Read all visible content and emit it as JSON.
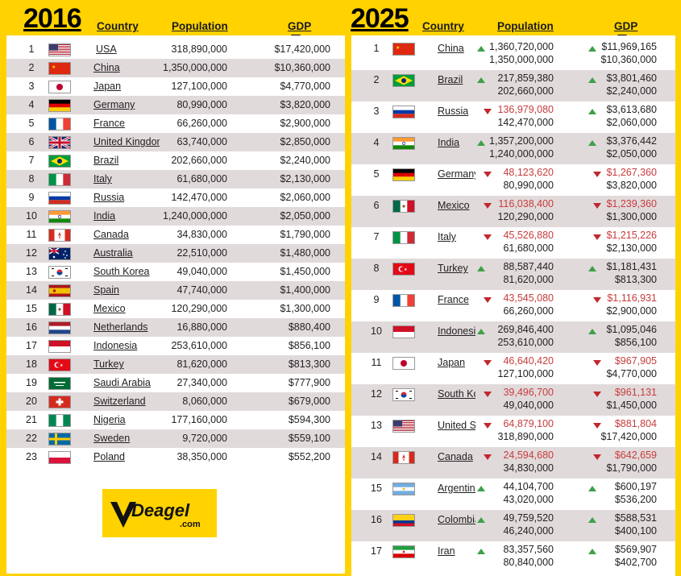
{
  "left": {
    "year": "2016",
    "col_country": "Country",
    "col_population": "Population",
    "col_gdp": "GDP",
    "rows": [
      {
        "rank": "1",
        "country": "USA",
        "population": "318,890,000",
        "gdp": "$17,420,000",
        "flag": "us"
      },
      {
        "rank": "2",
        "country": "China",
        "population": "1,350,000,000",
        "gdp": "$10,360,000",
        "flag": "cn"
      },
      {
        "rank": "3",
        "country": "Japan",
        "population": "127,100,000",
        "gdp": "$4,770,000",
        "flag": "jp"
      },
      {
        "rank": "4",
        "country": "Germany",
        "population": "80,990,000",
        "gdp": "$3,820,000",
        "flag": "de"
      },
      {
        "rank": "5",
        "country": "France",
        "population": "66,260,000",
        "gdp": "$2,900,000",
        "flag": "fr"
      },
      {
        "rank": "6",
        "country": "United Kingdom",
        "population": "63,740,000",
        "gdp": "$2,850,000",
        "flag": "gb"
      },
      {
        "rank": "7",
        "country": "Brazil",
        "population": "202,660,000",
        "gdp": "$2,240,000",
        "flag": "br"
      },
      {
        "rank": "8",
        "country": "Italy",
        "population": "61,680,000",
        "gdp": "$2,130,000",
        "flag": "it"
      },
      {
        "rank": "9",
        "country": "Russia",
        "population": "142,470,000",
        "gdp": "$2,060,000",
        "flag": "ru"
      },
      {
        "rank": "10",
        "country": "India",
        "population": "1,240,000,000",
        "gdp": "$2,050,000",
        "flag": "in"
      },
      {
        "rank": "11",
        "country": "Canada",
        "population": "34,830,000",
        "gdp": "$1,790,000",
        "flag": "ca"
      },
      {
        "rank": "12",
        "country": "Australia",
        "population": "22,510,000",
        "gdp": "$1,480,000",
        "flag": "au"
      },
      {
        "rank": "13",
        "country": "South Korea",
        "population": "49,040,000",
        "gdp": "$1,450,000",
        "flag": "kr"
      },
      {
        "rank": "14",
        "country": "Spain",
        "population": "47,740,000",
        "gdp": "$1,400,000",
        "flag": "es"
      },
      {
        "rank": "15",
        "country": "Mexico",
        "population": "120,290,000",
        "gdp": "$1,300,000",
        "flag": "mx"
      },
      {
        "rank": "16",
        "country": "Netherlands",
        "population": "16,880,000",
        "gdp": "$880,400",
        "flag": "nl"
      },
      {
        "rank": "17",
        "country": "Indonesia",
        "population": "253,610,000",
        "gdp": "$856,100",
        "flag": "id"
      },
      {
        "rank": "18",
        "country": "Turkey",
        "population": "81,620,000",
        "gdp": "$813,300",
        "flag": "tr"
      },
      {
        "rank": "19",
        "country": "Saudi Arabia",
        "population": "27,340,000",
        "gdp": "$777,900",
        "flag": "sa"
      },
      {
        "rank": "20",
        "country": "Switzerland",
        "population": "8,060,000",
        "gdp": "$679,000",
        "flag": "ch"
      },
      {
        "rank": "21",
        "country": "Nigeria",
        "population": "177,160,000",
        "gdp": "$594,300",
        "flag": "ng"
      },
      {
        "rank": "22",
        "country": "Sweden",
        "population": "9,720,000",
        "gdp": "$559,100",
        "flag": "se"
      },
      {
        "rank": "23",
        "country": "Poland",
        "population": "38,350,000",
        "gdp": "$552,200",
        "flag": "pl"
      }
    ]
  },
  "right": {
    "year": "2025",
    "col_country": "Country",
    "col_population": "Population",
    "col_gdp": "GDP",
    "rows": [
      {
        "rank": "1",
        "country": "China",
        "flag": "cn",
        "pop_new": "1,360,720,000",
        "pop_old": "1,350,000,000",
        "pop_dir": "up",
        "gdp_new": "$11,969,165",
        "gdp_old": "$10,360,000",
        "gdp_dir": "up"
      },
      {
        "rank": "2",
        "country": "Brazil",
        "flag": "br",
        "pop_new": "217,859,380",
        "pop_old": "202,660,000",
        "pop_dir": "up",
        "gdp_new": "$3,801,460",
        "gdp_old": "$2,240,000",
        "gdp_dir": "up"
      },
      {
        "rank": "3",
        "country": "Russia",
        "flag": "ru",
        "pop_new": "136,979,080",
        "pop_old": "142,470,000",
        "pop_dir": "down",
        "gdp_new": "$3,613,680",
        "gdp_old": "$2,060,000",
        "gdp_dir": "up"
      },
      {
        "rank": "4",
        "country": "India",
        "flag": "in",
        "pop_new": "1,357,200,000",
        "pop_old": "1,240,000,000",
        "pop_dir": "up",
        "gdp_new": "$3,376,442",
        "gdp_old": "$2,050,000",
        "gdp_dir": "up"
      },
      {
        "rank": "5",
        "country": "Germany",
        "flag": "de",
        "pop_new": "48,123,620",
        "pop_old": "80,990,000",
        "pop_dir": "down",
        "gdp_new": "$1,267,360",
        "gdp_old": "$3,820,000",
        "gdp_dir": "down"
      },
      {
        "rank": "6",
        "country": "Mexico",
        "flag": "mx",
        "pop_new": "116,038,400",
        "pop_old": "120,290,000",
        "pop_dir": "down",
        "gdp_new": "$1,239,360",
        "gdp_old": "$1,300,000",
        "gdp_dir": "down"
      },
      {
        "rank": "7",
        "country": "Italy",
        "flag": "it",
        "pop_new": "45,526,880",
        "pop_old": "61,680,000",
        "pop_dir": "down",
        "gdp_new": "$1,215,226",
        "gdp_old": "$2,130,000",
        "gdp_dir": "down"
      },
      {
        "rank": "8",
        "country": "Turkey",
        "flag": "tr",
        "pop_new": "88,587,440",
        "pop_old": "81,620,000",
        "pop_dir": "up",
        "gdp_new": "$1,181,431",
        "gdp_old": "$813,300",
        "gdp_dir": "up"
      },
      {
        "rank": "9",
        "country": "France",
        "flag": "fr",
        "pop_new": "43,545,080",
        "pop_old": "66,260,000",
        "pop_dir": "down",
        "gdp_new": "$1,116,931",
        "gdp_old": "$2,900,000",
        "gdp_dir": "down"
      },
      {
        "rank": "10",
        "country": "Indonesia",
        "flag": "id",
        "pop_new": "269,846,400",
        "pop_old": "253,610,000",
        "pop_dir": "up",
        "gdp_new": "$1,095,046",
        "gdp_old": "$856,100",
        "gdp_dir": "up"
      },
      {
        "rank": "11",
        "country": "Japan",
        "flag": "jp",
        "pop_new": "46,640,420",
        "pop_old": "127,100,000",
        "pop_dir": "down",
        "gdp_new": "$967,905",
        "gdp_old": "$4,770,000",
        "gdp_dir": "down"
      },
      {
        "rank": "12",
        "country": "South Korea",
        "flag": "kr",
        "pop_new": "39,496,700",
        "pop_old": "49,040,000",
        "pop_dir": "down",
        "gdp_new": "$961,131",
        "gdp_old": "$1,450,000",
        "gdp_dir": "down"
      },
      {
        "rank": "13",
        "country": "United States",
        "flag": "us",
        "pop_new": "64,879,100",
        "pop_old": "318,890,000",
        "pop_dir": "down",
        "gdp_new": "$881,804",
        "gdp_old": "$17,420,000",
        "gdp_dir": "down"
      },
      {
        "rank": "14",
        "country": "Canada",
        "flag": "ca",
        "pop_new": "24,594,680",
        "pop_old": "34,830,000",
        "pop_dir": "down",
        "gdp_new": "$642,659",
        "gdp_old": "$1,790,000",
        "gdp_dir": "down"
      },
      {
        "rank": "15",
        "country": "Argentina",
        "flag": "ar",
        "pop_new": "44,104,700",
        "pop_old": "43,020,000",
        "pop_dir": "up",
        "gdp_new": "$600,197",
        "gdp_old": "$536,200",
        "gdp_dir": "up"
      },
      {
        "rank": "16",
        "country": "Colombia",
        "flag": "co",
        "pop_new": "49,759,520",
        "pop_old": "46,240,000",
        "pop_dir": "up",
        "gdp_new": "$588,531",
        "gdp_old": "$400,100",
        "gdp_dir": "up"
      },
      {
        "rank": "17",
        "country": "Iran",
        "flag": "ir",
        "pop_new": "83,357,560",
        "pop_old": "80,840,000",
        "pop_dir": "up",
        "gdp_new": "$569,907",
        "gdp_old": "$402,700",
        "gdp_dir": "up"
      }
    ]
  },
  "logo": {
    "brand": "Deagel",
    "suffix": ".com"
  },
  "colors": {
    "background": "#ffd200",
    "row_alt": "#e1dadb",
    "up": "#3da148",
    "down": "#c0282d"
  }
}
